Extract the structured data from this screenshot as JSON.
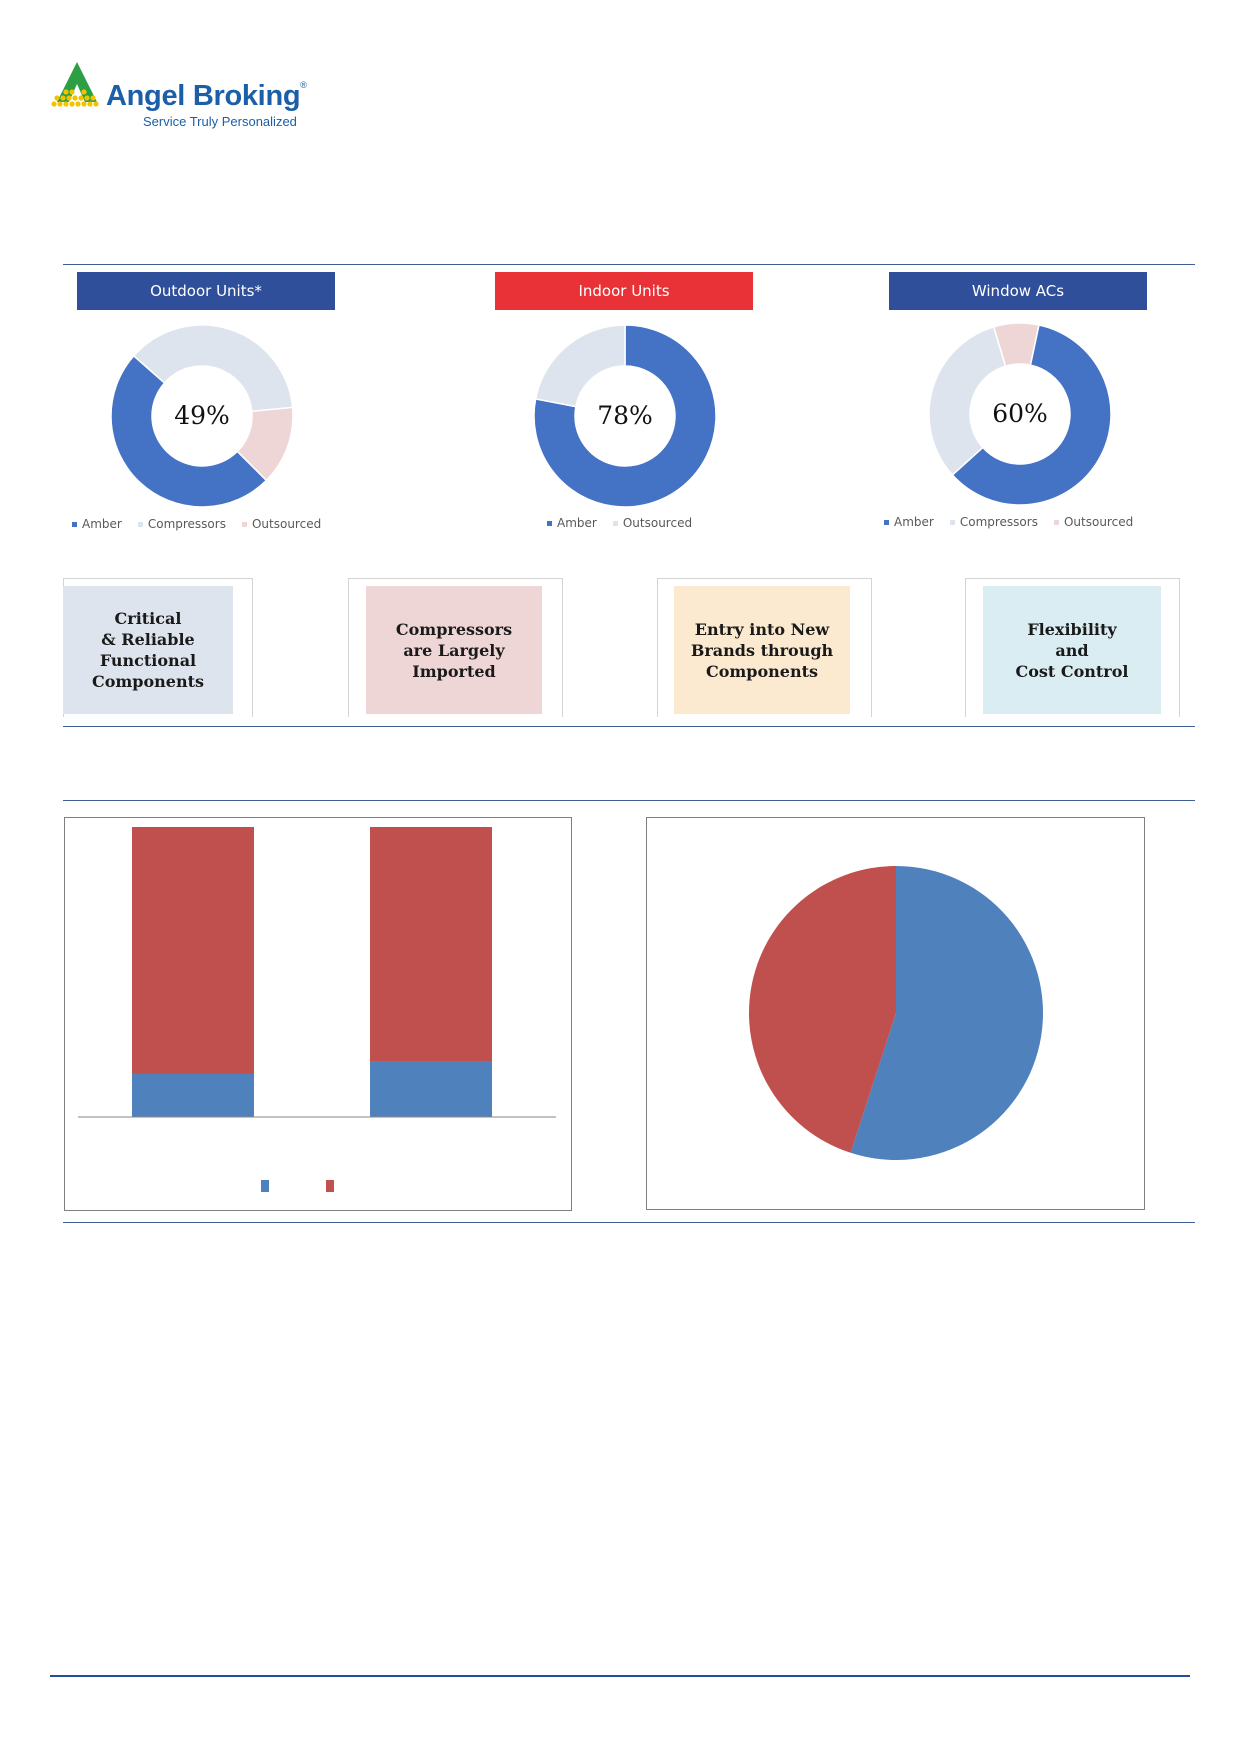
{
  "brand": {
    "name": "Angel Broking",
    "tagline": "Service Truly Personalized",
    "colors": {
      "blue": "#1b5fa8",
      "green": "#2e9e45",
      "yellow": "#f2c300"
    }
  },
  "colors": {
    "amber": "#4472c4",
    "compressors": "#dde4ed",
    "outsourced": "#efd6d6",
    "bar_blue": "#4f81bd",
    "bar_red": "#c0504d",
    "header_blue": "#2f4f9b",
    "header_red": "#e83238"
  },
  "units": [
    {
      "header": "Outdoor Units*",
      "header_color": "#2f4f9b",
      "center_label": "49%",
      "legend": [
        "Amber",
        "Compressors",
        "Outsourced"
      ]
    },
    {
      "header": "Indoor Units",
      "header_color": "#e83238",
      "center_label": "78%",
      "legend": [
        "Amber",
        "Outsourced"
      ]
    },
    {
      "header": "Window ACs",
      "header_color": "#2f4f9b",
      "center_label": "60%",
      "legend": [
        "Amber",
        "Compressors",
        "Outsourced"
      ]
    }
  ],
  "cards": [
    {
      "text": "Critical\n& Reliable\nFunctional\nComponents",
      "bg": "#dde4ed"
    },
    {
      "text": "Compressors\nare Largely\nImported",
      "bg": "#efd6d6"
    },
    {
      "text": "Entry into New\nBrands through\nComponents",
      "bg": "#fbe9d0"
    },
    {
      "text": "Flexibility\nand\nCost Control",
      "bg": "#d9edf2"
    }
  ],
  "chart_data": [
    {
      "type": "pie",
      "variant": "donut",
      "center_label": "49%",
      "series": [
        {
          "name": "Amber",
          "values": [
            49
          ],
          "color": "#4472c4"
        },
        {
          "name": "Compressors",
          "values": [
            37
          ],
          "color": "#dde4ed"
        },
        {
          "name": "Outsourced",
          "values": [
            14
          ],
          "color": "#efd6d6"
        }
      ]
    },
    {
      "type": "pie",
      "variant": "donut",
      "center_label": "78%",
      "series": [
        {
          "name": "Amber",
          "values": [
            78
          ],
          "color": "#4472c4"
        },
        {
          "name": "Outsourced",
          "values": [
            22
          ],
          "color": "#dde4ed"
        }
      ]
    },
    {
      "type": "pie",
      "variant": "donut",
      "center_label": "60%",
      "series": [
        {
          "name": "Amber",
          "values": [
            60
          ],
          "color": "#4472c4"
        },
        {
          "name": "Compressors",
          "values": [
            32
          ],
          "color": "#dde4ed"
        },
        {
          "name": "Outsourced",
          "values": [
            8
          ],
          "color": "#efd6d6"
        }
      ]
    },
    {
      "type": "bar",
      "stacked": true,
      "categories": [
        "",
        ""
      ],
      "series": [
        {
          "values": [
            15,
            19
          ],
          "color": "#4f81bd"
        },
        {
          "values": [
            85,
            81
          ],
          "color": "#c0504d"
        }
      ],
      "ylim": [
        0,
        100
      ],
      "grid": false,
      "legend": "bottom"
    },
    {
      "type": "pie",
      "slices": [
        {
          "value": 55,
          "color": "#4f81bd"
        },
        {
          "value": 45,
          "color": "#c0504d"
        }
      ]
    }
  ]
}
